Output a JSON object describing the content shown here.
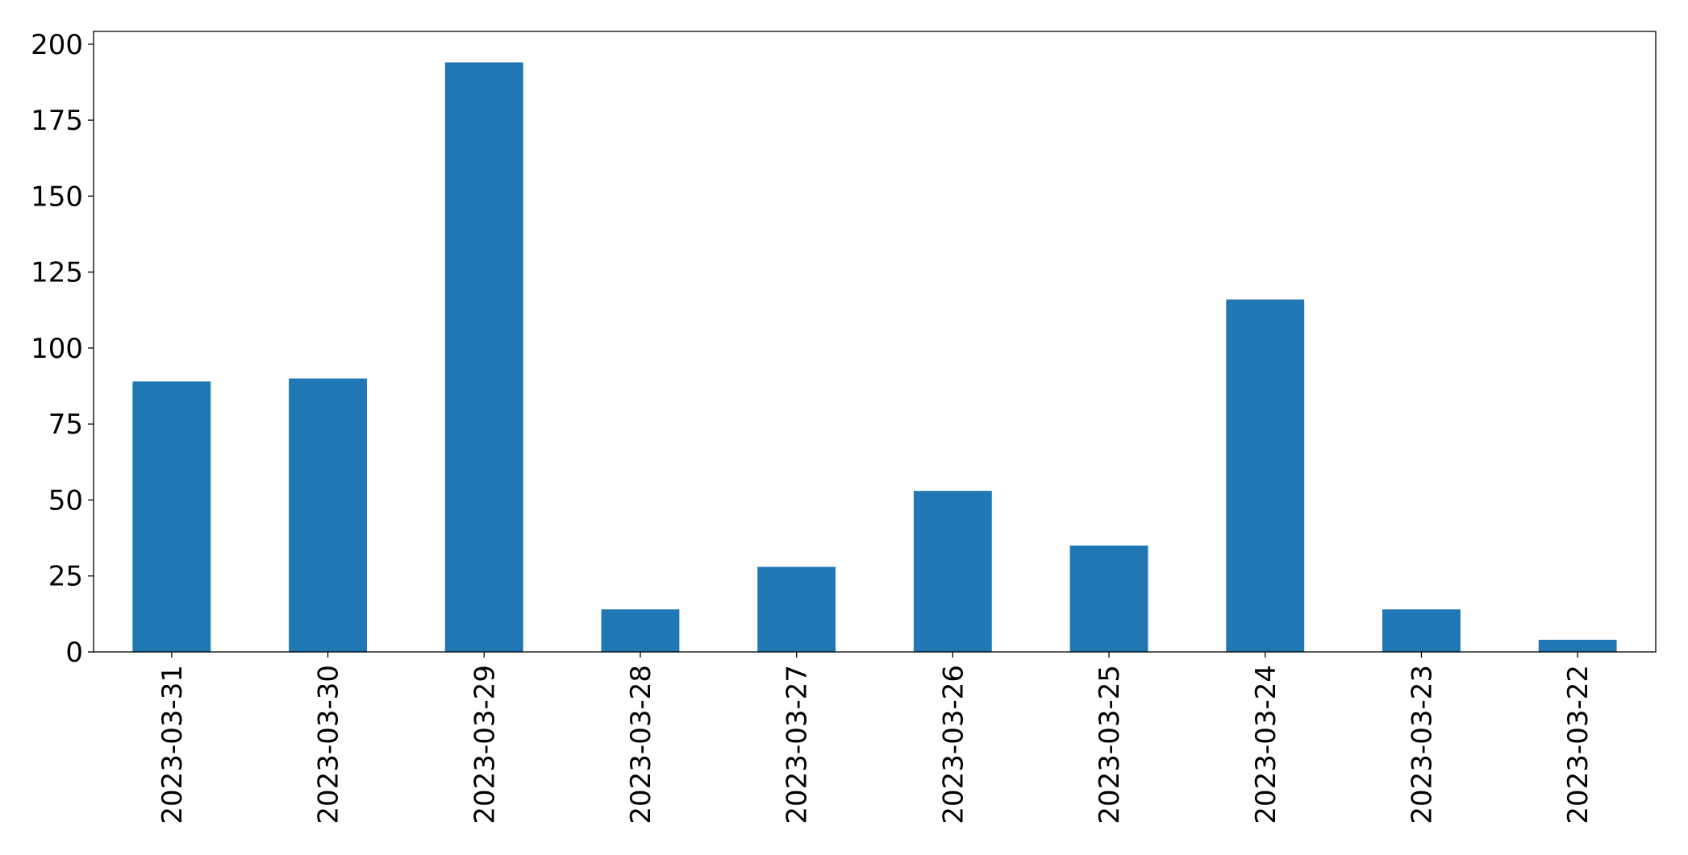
{
  "chart_data": {
    "type": "bar",
    "categories": [
      "2023-03-31",
      "2023-03-30",
      "2023-03-29",
      "2023-03-28",
      "2023-03-27",
      "2023-03-26",
      "2023-03-25",
      "2023-03-24",
      "2023-03-23",
      "2023-03-22"
    ],
    "values": [
      89,
      90,
      194,
      14,
      28,
      53,
      35,
      116,
      14,
      4
    ],
    "color": "#1f77b4",
    "ylim": [
      0,
      204.2
    ],
    "yticks": [
      0,
      25,
      50,
      75,
      100,
      125,
      150,
      175,
      200
    ],
    "grid": false
  }
}
